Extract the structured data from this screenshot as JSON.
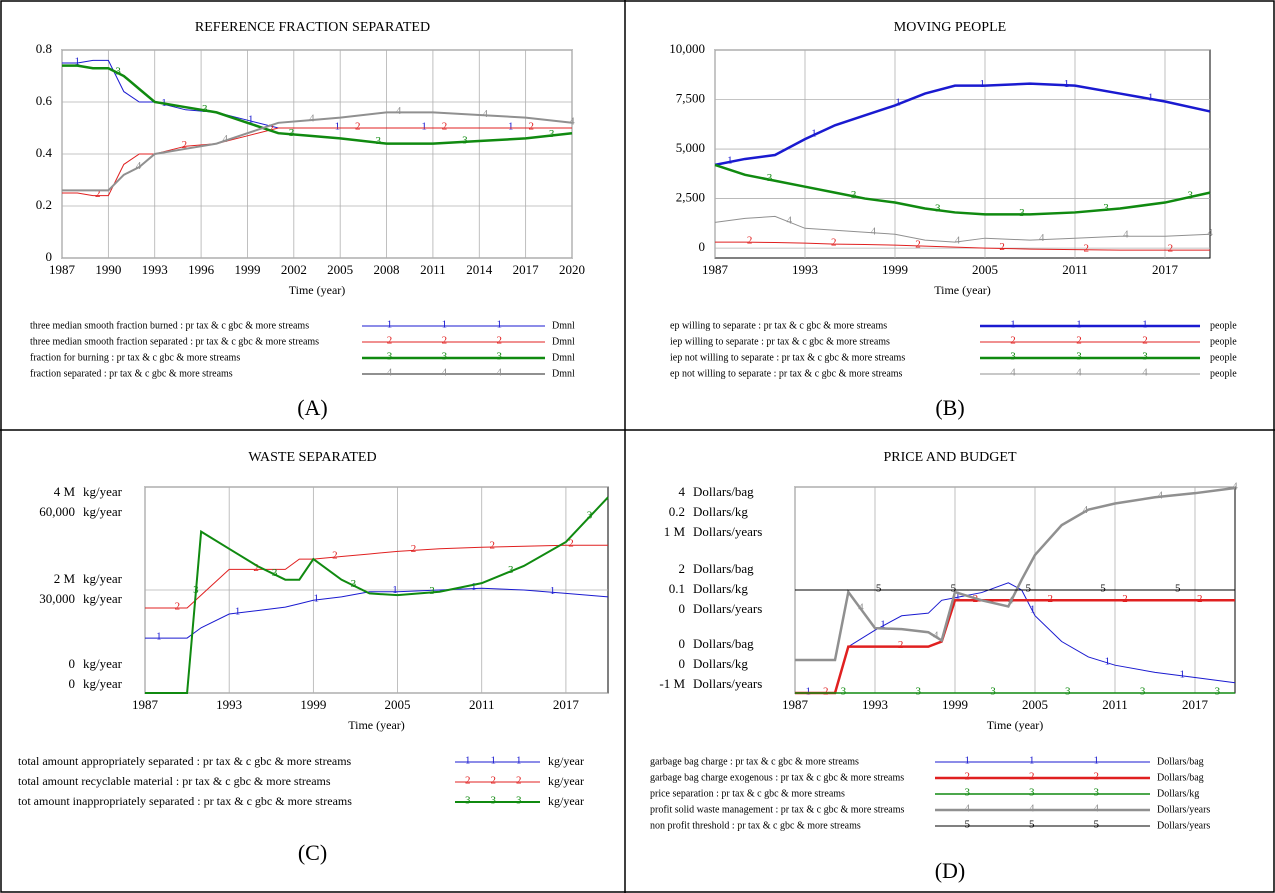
{
  "chart_data": [
    {
      "type": "line",
      "panel": "(A)",
      "title": "REFERENCE FRACTION SEPARATED",
      "xlabel": "Time (year)",
      "grid": true,
      "xlim": [
        1987,
        2020
      ],
      "xticks": [
        1987,
        1990,
        1993,
        1996,
        1999,
        2002,
        2005,
        2008,
        2011,
        2014,
        2017,
        2020
      ],
      "ylim": [
        0,
        0.8
      ],
      "yticks": [
        0,
        0.2,
        0.4,
        0.6,
        0.8
      ],
      "x": [
        1987,
        1988,
        1989,
        1990,
        1991,
        1992,
        1993,
        1995,
        1997,
        1999,
        2001,
        2003,
        2005,
        2008,
        2011,
        2014,
        2017,
        2020
      ],
      "series": [
        {
          "name": "three median smooth fraction burned : pr tax & c gbc & more streams",
          "marker": "1",
          "unit": "Dmnl",
          "color": "#1a1ad0",
          "width": 1,
          "values": [
            0.75,
            0.75,
            0.76,
            0.76,
            0.64,
            0.6,
            0.6,
            0.57,
            0.56,
            0.53,
            0.5,
            0.5,
            0.5,
            0.5,
            0.5,
            0.5,
            0.5,
            0.5
          ]
        },
        {
          "name": "three median smooth fraction separated : pr tax & c gbc & more streams",
          "marker": "2",
          "unit": "Dmnl",
          "color": "#e02020",
          "width": 1,
          "values": [
            0.25,
            0.25,
            0.24,
            0.24,
            0.36,
            0.4,
            0.4,
            0.43,
            0.44,
            0.47,
            0.5,
            0.5,
            0.5,
            0.5,
            0.5,
            0.5,
            0.5,
            0.5
          ]
        },
        {
          "name": "fraction for burning : pr tax & c gbc & more streams",
          "marker": "3",
          "unit": "Dmnl",
          "color": "#108a10",
          "width": 2.5,
          "values": [
            0.74,
            0.74,
            0.73,
            0.73,
            0.7,
            0.65,
            0.6,
            0.58,
            0.56,
            0.52,
            0.48,
            0.47,
            0.46,
            0.44,
            0.44,
            0.45,
            0.46,
            0.48
          ]
        },
        {
          "name": "fraction separated : pr tax & c gbc & more streams",
          "marker": "4",
          "unit": "Dmnl",
          "color": "#909090",
          "width": 2,
          "values": [
            0.26,
            0.26,
            0.26,
            0.26,
            0.32,
            0.35,
            0.4,
            0.42,
            0.44,
            0.48,
            0.52,
            0.53,
            0.54,
            0.56,
            0.56,
            0.55,
            0.54,
            0.52
          ]
        }
      ]
    },
    {
      "type": "line",
      "panel": "(B)",
      "title": "MOVING PEOPLE",
      "xlabel": "Time (year)",
      "grid": true,
      "xlim": [
        1987,
        2020
      ],
      "xticks": [
        1987,
        1993,
        1999,
        2005,
        2011,
        2017
      ],
      "ylim": [
        -500,
        10000
      ],
      "yticks": [
        0,
        {
          "value": 2500,
          "label": "2,500"
        },
        {
          "value": 5000,
          "label": "5,000"
        },
        {
          "value": 7500,
          "label": "7,500"
        },
        {
          "value": 10000,
          "label": "10,000"
        }
      ],
      "x": [
        1987,
        1989,
        1991,
        1993,
        1995,
        1997,
        1999,
        2001,
        2003,
        2005,
        2008,
        2011,
        2014,
        2017,
        2020
      ],
      "series": [
        {
          "name": "ep willing to separate : pr tax & c gbc & more streams",
          "marker": "1",
          "unit": "people",
          "color": "#1a1ad0",
          "width": 2.5,
          "values": [
            4200,
            4500,
            4700,
            5500,
            6200,
            6700,
            7200,
            7800,
            8200,
            8200,
            8300,
            8200,
            7800,
            7400,
            6900
          ]
        },
        {
          "name": "iep willing to separate : pr tax & c gbc & more streams",
          "marker": "2",
          "unit": "people",
          "color": "#e02020",
          "width": 1,
          "values": [
            300,
            300,
            280,
            250,
            200,
            180,
            150,
            100,
            50,
            0,
            -50,
            -80,
            -100,
            -100,
            -100
          ]
        },
        {
          "name": "iep not willing to separate : pr tax & c gbc & more streams",
          "marker": "3",
          "unit": "people",
          "color": "#108a10",
          "width": 2.5,
          "values": [
            4200,
            3700,
            3400,
            3100,
            2800,
            2500,
            2300,
            2000,
            1800,
            1700,
            1700,
            1800,
            2000,
            2300,
            2800
          ]
        },
        {
          "name": "ep not willing to separate : pr tax & c gbc & more streams",
          "marker": "4",
          "unit": "people",
          "color": "#909090",
          "width": 1,
          "values": [
            1300,
            1500,
            1600,
            1000,
            900,
            800,
            700,
            400,
            300,
            500,
            400,
            500,
            600,
            600,
            700
          ]
        }
      ]
    },
    {
      "type": "line",
      "panel": "(C)",
      "title": "WASTE SEPARATED",
      "xlabel": "Time (year)",
      "grid": true,
      "xlim": [
        1987,
        2020
      ],
      "xticks": [
        1987,
        1993,
        1999,
        2005,
        2011,
        2017
      ],
      "ylim": [
        0,
        4000000
      ],
      "yticks": [
        0,
        {
          "value": 2000000,
          "label": "2 M"
        },
        {
          "value": 4000000,
          "label": "4 M"
        }
      ],
      "yunit": "kg/year",
      "y2lim": [
        0,
        60000
      ],
      "y2ticks": [
        0,
        {
          "value": 30000,
          "label": "30,000"
        },
        {
          "value": 60000,
          "label": "60,000"
        }
      ],
      "y2unit": "kg/year",
      "x": [
        1987,
        1989,
        1990,
        1991,
        1993,
        1995,
        1997,
        1998,
        1999,
        2001,
        2003,
        2005,
        2008,
        2011,
        2014,
        2017,
        2020
      ],
      "series": [
        {
          "name": "total amount appropriately separated : pr tax & c gbc & more streams",
          "marker": "1",
          "unit": "kg/year",
          "color": "#1a1ad0",
          "width": 1,
          "axis": "y2",
          "values": [
            16000,
            16000,
            16000,
            19000,
            23000,
            24000,
            25000,
            26000,
            27000,
            28000,
            29500,
            29500,
            30000,
            30500,
            30000,
            29000,
            28000
          ]
        },
        {
          "name": "total amount recyclable material : pr tax & c gbc & more streams",
          "marker": "2",
          "unit": "kg/year",
          "color": "#e02020",
          "width": 1,
          "values": [
            1650000,
            1650000,
            1650000,
            1900000,
            2400000,
            2400000,
            2400000,
            2600000,
            2600000,
            2650000,
            2700000,
            2750000,
            2800000,
            2830000,
            2850000,
            2870000,
            2870000
          ]
        },
        {
          "name": "tot amount inappropriately separated : pr tax & c gbc & more streams",
          "marker": "3",
          "unit": "kg/year",
          "color": "#108a10",
          "width": 2,
          "axis": "y2",
          "values": [
            0,
            0,
            0,
            47000,
            42000,
            37000,
            33000,
            33000,
            39000,
            33000,
            29000,
            28500,
            29500,
            32000,
            37000,
            44000,
            57000
          ]
        }
      ]
    },
    {
      "type": "line",
      "panel": "(D)",
      "title": "PRICE AND BUDGET",
      "xlabel": "Time (year)",
      "grid": true,
      "xlim": [
        1987,
        2020
      ],
      "xticks": [
        1987,
        1993,
        1999,
        2005,
        2011,
        2017
      ],
      "ylim": [
        0,
        4
      ],
      "yticks": [
        0,
        2,
        4
      ],
      "yunit": "Dollars/bag",
      "y2lim": [
        0,
        0.2
      ],
      "y2ticks": [
        0,
        0.1,
        0.2
      ],
      "y2unit": "Dollars/kg",
      "y3lim": [
        -1000000,
        1000000
      ],
      "y3ticks": [
        {
          "value": -1000000,
          "label": "-1 M"
        },
        0,
        {
          "value": 1000000,
          "label": "1 M"
        }
      ],
      "y3unit": "Dollars/years",
      "x": [
        1987,
        1989,
        1990,
        1991,
        1993,
        1995,
        1997,
        1998,
        1999,
        2001,
        2003,
        2004,
        2005,
        2007,
        2009,
        2011,
        2014,
        2017,
        2020
      ],
      "series": [
        {
          "name": "garbage bag charge : pr tax & c gbc & more streams",
          "marker": "1",
          "unit": "Dollars/bag",
          "color": "#1a1ad0",
          "width": 1,
          "values": [
            0,
            0,
            0,
            0.9,
            1.22,
            1.5,
            1.55,
            1.8,
            1.85,
            1.95,
            2.14,
            2.0,
            1.5,
            1.0,
            0.7,
            0.54,
            0.4,
            0.3,
            0.2
          ]
        },
        {
          "name": "garbage bag charge exogenous : pr tax & c gbc & more streams",
          "marker": "2",
          "unit": "Dollars/bag",
          "color": "#e02020",
          "width": 2.5,
          "values": [
            0,
            0,
            0,
            0.9,
            0.9,
            0.9,
            0.9,
            1.0,
            1.8,
            1.8,
            1.8,
            1.8,
            1.8,
            1.8,
            1.8,
            1.8,
            1.8,
            1.8,
            1.8
          ]
        },
        {
          "name": "price separation : pr tax & c gbc & more streams",
          "marker": "3",
          "unit": "Dollars/kg",
          "color": "#108a10",
          "width": 1.5,
          "axis": "y2",
          "values": [
            0,
            0,
            0,
            0,
            0,
            0,
            0,
            0,
            0,
            0,
            0,
            0,
            0,
            0,
            0,
            0,
            0,
            0,
            0
          ]
        },
        {
          "name": "profit solid waste management : pr tax & c gbc & more streams",
          "marker": "4",
          "unit": "Dollars/years",
          "color": "#909090",
          "width": 2.5,
          "axis": "y3",
          "values": [
            -680000,
            -680000,
            -680000,
            -20000,
            -370000,
            -380000,
            -410000,
            -490000,
            -20000,
            -100000,
            -160000,
            100000,
            340000,
            630000,
            780000,
            840000,
            900000,
            940000,
            990000
          ]
        },
        {
          "name": "non profit threshold : pr tax & c gbc & more streams",
          "marker": "5",
          "unit": "Dollars/years",
          "color": "#000000",
          "width": 1,
          "axis": "y3",
          "values": [
            0,
            0,
            0,
            0,
            0,
            0,
            0,
            0,
            0,
            0,
            0,
            0,
            0,
            0,
            0,
            0,
            0,
            0,
            0
          ]
        }
      ]
    }
  ]
}
